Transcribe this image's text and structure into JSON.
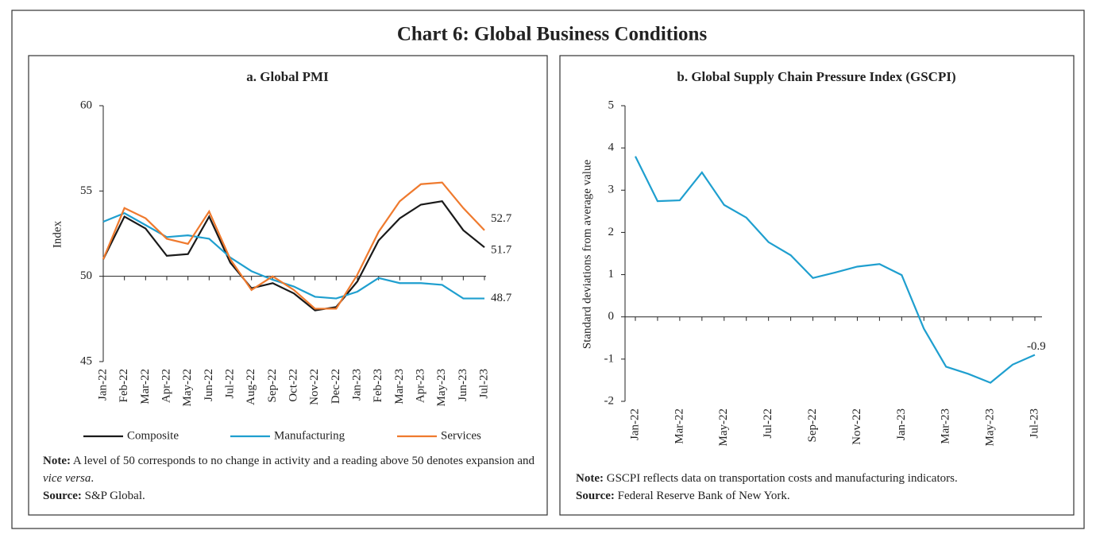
{
  "title": "Chart 6: Global Business Conditions",
  "chart_data": [
    {
      "type": "line",
      "title": "a. Global PMI",
      "y_label": "Index",
      "categories": [
        "Jan-22",
        "Feb-22",
        "Mar-22",
        "Apr-22",
        "May-22",
        "Jun-22",
        "Jul-22",
        "Aug-22",
        "Sep-22",
        "Oct-22",
        "Nov-22",
        "Dec-22",
        "Jan-23",
        "Feb-23",
        "Mar-23",
        "Apr-23",
        "May-23",
        "Jun-23",
        "Jul-23"
      ],
      "series": [
        {
          "name": "Composite",
          "color": "#1a1a1a",
          "values": [
            51.0,
            53.5,
            52.8,
            51.2,
            51.3,
            53.5,
            50.8,
            49.3,
            49.6,
            49.0,
            48.0,
            48.2,
            49.7,
            52.1,
            53.4,
            54.2,
            54.4,
            52.7,
            51.7
          ],
          "value_labels": [
            null,
            null,
            null,
            null,
            null,
            null,
            null,
            null,
            null,
            null,
            null,
            null,
            null,
            null,
            null,
            null,
            null,
            null,
            "51.7"
          ]
        },
        {
          "name": "Manufacturing",
          "color": "#1f9fcf",
          "values": [
            53.2,
            53.7,
            53.0,
            52.3,
            52.4,
            52.2,
            51.1,
            50.3,
            49.8,
            49.4,
            48.8,
            48.7,
            49.1,
            49.9,
            49.6,
            49.6,
            49.5,
            48.7,
            48.7
          ],
          "value_labels": [
            null,
            null,
            null,
            null,
            null,
            null,
            null,
            null,
            null,
            null,
            null,
            null,
            null,
            null,
            null,
            null,
            null,
            null,
            "48.7"
          ]
        },
        {
          "name": "Services",
          "color": "#ef7a2e",
          "values": [
            51.0,
            54.0,
            53.4,
            52.2,
            51.9,
            53.8,
            51.0,
            49.2,
            50.0,
            49.2,
            48.1,
            48.1,
            50.1,
            52.6,
            54.4,
            55.4,
            55.5,
            54.0,
            52.7
          ],
          "value_labels": [
            null,
            null,
            null,
            null,
            null,
            null,
            null,
            null,
            null,
            null,
            null,
            null,
            null,
            null,
            null,
            null,
            null,
            null,
            "52.7"
          ]
        }
      ],
      "ylim": [
        45,
        60
      ],
      "yticks": [
        45,
        50,
        55,
        60
      ],
      "xaxis_at": 50,
      "legend": "bottom",
      "note_label": "Note:",
      "note": "A level of 50 corresponds to no change in activity and a reading above 50 denotes expansion and ",
      "note_italic": "vice versa",
      "note_end": ".",
      "source_label": "Source:",
      "source": "S&P Global."
    },
    {
      "type": "line",
      "title": "b. Global Supply Chain Pressure Index (GSCPI)",
      "y_label": "Standard deviations from average value",
      "categories": [
        "Jan-22",
        null,
        "Mar-22",
        null,
        "May-22",
        null,
        "Jul-22",
        null,
        "Sep-22",
        null,
        "Nov-22",
        null,
        "Jan-23",
        null,
        "Mar-23",
        null,
        "May-23",
        null,
        "Jul-23"
      ],
      "series": [
        {
          "name": null,
          "color": "#1f9fcf",
          "values": [
            3.8,
            2.74,
            2.76,
            3.42,
            2.65,
            2.35,
            1.77,
            1.46,
            0.92,
            1.05,
            1.19,
            1.25,
            0.99,
            -0.28,
            -1.18,
            -1.35,
            -1.56,
            -1.13,
            -0.9
          ],
          "value_labels": [
            null,
            null,
            null,
            null,
            null,
            null,
            null,
            null,
            null,
            null,
            null,
            null,
            null,
            null,
            null,
            null,
            null,
            null,
            "-0.9"
          ]
        }
      ],
      "ylim": [
        -2,
        5
      ],
      "yticks": [
        -2,
        -1,
        0,
        1,
        2,
        3,
        4,
        5
      ],
      "xaxis_at": 0,
      "note_label": "Note:",
      "note": "GSCPI reflects data on transportation costs and manufacturing indicators.",
      "source_label": "Source:",
      "source": "Federal Reserve Bank of New York."
    }
  ]
}
